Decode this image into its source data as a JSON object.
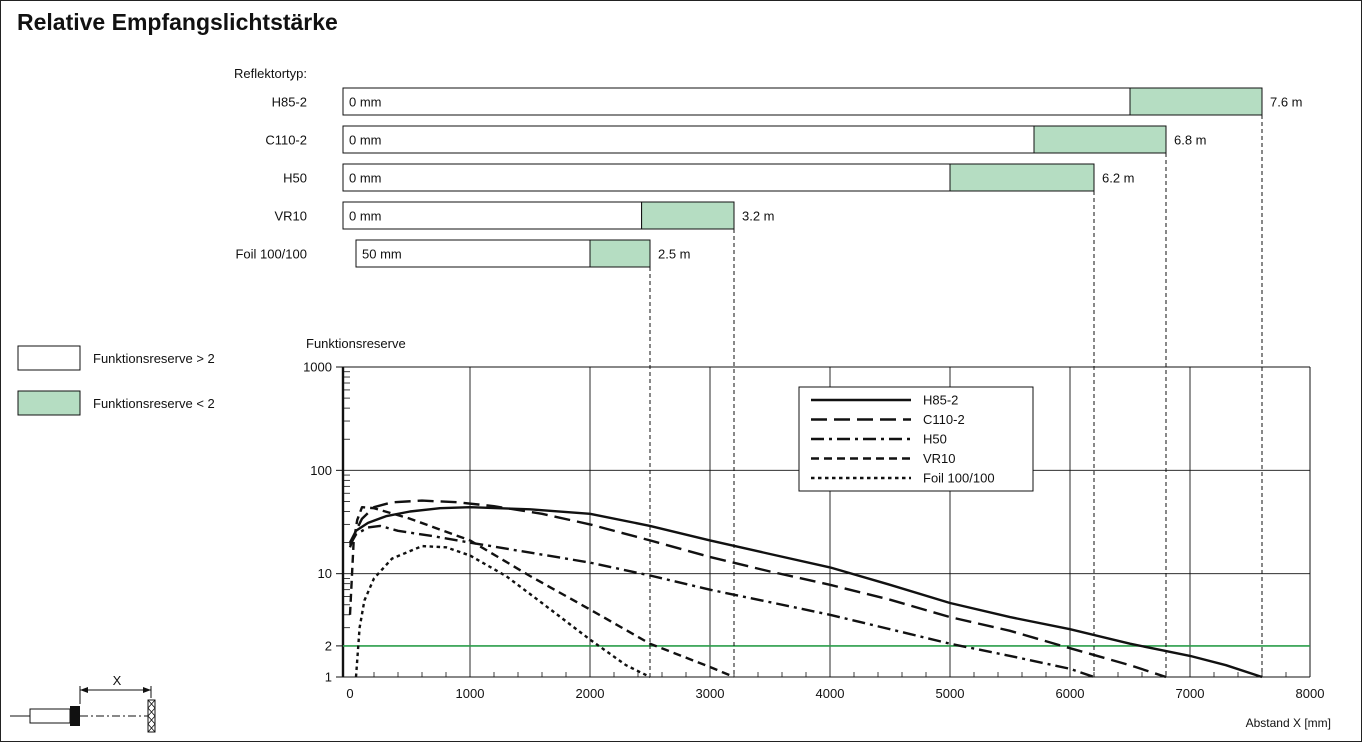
{
  "title": "Relative Empfangslichtstärke",
  "reflector_heading": "Reflektortyp:",
  "colors": {
    "reserve_low": "#b5ddc2",
    "reserve_high": "#ffffff",
    "threshold_line": "#2a9d4a",
    "ink": "#111111"
  },
  "range_bars": [
    {
      "label": "H85-2",
      "start_label": "0 mm",
      "start": 0,
      "green_from": 6500,
      "end": 7600,
      "end_label": "7.6 m"
    },
    {
      "label": "C110-2",
      "start_label": "0 mm",
      "start": 0,
      "green_from": 5700,
      "end": 6800,
      "end_label": "6.8 m"
    },
    {
      "label": "H50",
      "start_label": "0 mm",
      "start": 0,
      "green_from": 5000,
      "end": 6200,
      "end_label": "6.2 m"
    },
    {
      "label": "VR10",
      "start_label": "0 mm",
      "start": 0,
      "green_from": 2430,
      "end": 3200,
      "end_label": "3.2 m"
    },
    {
      "label": "Foil 100/100",
      "start_label": "50 mm",
      "start": 50,
      "green_from": 2000,
      "end": 2500,
      "end_label": "2.5 m"
    }
  ],
  "legend_boxes": [
    {
      "label": "Funktionsreserve > 2",
      "kind": "high"
    },
    {
      "label": "Funktionsreserve < 2",
      "kind": "low"
    }
  ],
  "diagram": {
    "x_label": "X"
  },
  "chart_data": {
    "type": "line",
    "title": "Relative Empfangslichtstärke",
    "xlabel": "Abstand X [mm]",
    "ylabel": "Funktionsreserve",
    "xlim": [
      0,
      8000
    ],
    "ylim": [
      1,
      1000
    ],
    "y_scale": "log",
    "x_ticks": [
      0,
      1000,
      2000,
      3000,
      4000,
      5000,
      6000,
      7000,
      8000
    ],
    "y_ticks": [
      1,
      2,
      10,
      100,
      1000
    ],
    "threshold": 2,
    "grid": true,
    "legend_position": "top-right",
    "series": [
      {
        "name": "H85-2",
        "dash": "solid",
        "points": [
          [
            0,
            20
          ],
          [
            50,
            26
          ],
          [
            150,
            31
          ],
          [
            300,
            36
          ],
          [
            500,
            40
          ],
          [
            750,
            43
          ],
          [
            1000,
            44
          ],
          [
            1500,
            42
          ],
          [
            2000,
            38
          ],
          [
            2500,
            29
          ],
          [
            3000,
            21
          ],
          [
            3500,
            15.5
          ],
          [
            4000,
            11.5
          ],
          [
            4500,
            7.8
          ],
          [
            5000,
            5.2
          ],
          [
            5500,
            3.8
          ],
          [
            6000,
            2.9
          ],
          [
            6500,
            2.1
          ],
          [
            7000,
            1.6
          ],
          [
            7300,
            1.3
          ],
          [
            7600,
            1
          ]
        ]
      },
      {
        "name": "C110-2",
        "dash": "long-dash",
        "points": [
          [
            0,
            18
          ],
          [
            50,
            26
          ],
          [
            100,
            34
          ],
          [
            200,
            44
          ],
          [
            350,
            49
          ],
          [
            600,
            51
          ],
          [
            900,
            49
          ],
          [
            1200,
            45
          ],
          [
            1600,
            38
          ],
          [
            2000,
            30
          ],
          [
            2500,
            21
          ],
          [
            3000,
            14.5
          ],
          [
            3500,
            10.5
          ],
          [
            4000,
            7.8
          ],
          [
            4500,
            5.6
          ],
          [
            5000,
            3.8
          ],
          [
            5500,
            2.8
          ],
          [
            6000,
            1.9
          ],
          [
            6500,
            1.3
          ],
          [
            6800,
            1
          ]
        ]
      },
      {
        "name": "H50",
        "dash": "dash-dot",
        "points": [
          [
            0,
            19
          ],
          [
            50,
            24
          ],
          [
            150,
            28
          ],
          [
            250,
            29
          ],
          [
            400,
            26
          ],
          [
            700,
            23
          ],
          [
            1000,
            20
          ],
          [
            1500,
            16
          ],
          [
            2000,
            12.8
          ],
          [
            2500,
            9.6
          ],
          [
            3000,
            7.0
          ],
          [
            3500,
            5.3
          ],
          [
            4000,
            4.0
          ],
          [
            4500,
            2.9
          ],
          [
            5000,
            2.1
          ],
          [
            5500,
            1.6
          ],
          [
            6000,
            1.2
          ],
          [
            6200,
            1
          ]
        ]
      },
      {
        "name": "VR10",
        "dash": "dash",
        "points": [
          [
            0,
            4
          ],
          [
            30,
            20
          ],
          [
            60,
            33
          ],
          [
            100,
            44
          ],
          [
            200,
            43
          ],
          [
            500,
            34
          ],
          [
            1000,
            21
          ],
          [
            1500,
            9.5
          ],
          [
            2000,
            4.5
          ],
          [
            2500,
            2.1
          ],
          [
            3000,
            1.25
          ],
          [
            3200,
            1
          ]
        ]
      },
      {
        "name": "Foil 100/100",
        "dash": "dot",
        "points": [
          [
            50,
            1
          ],
          [
            80,
            3
          ],
          [
            120,
            5.5
          ],
          [
            200,
            9
          ],
          [
            350,
            14
          ],
          [
            600,
            18.5
          ],
          [
            800,
            18
          ],
          [
            1000,
            15
          ],
          [
            1300,
            9.5
          ],
          [
            1600,
            5.2
          ],
          [
            2000,
            2.3
          ],
          [
            2300,
            1.3
          ],
          [
            2500,
            1
          ]
        ]
      }
    ]
  }
}
